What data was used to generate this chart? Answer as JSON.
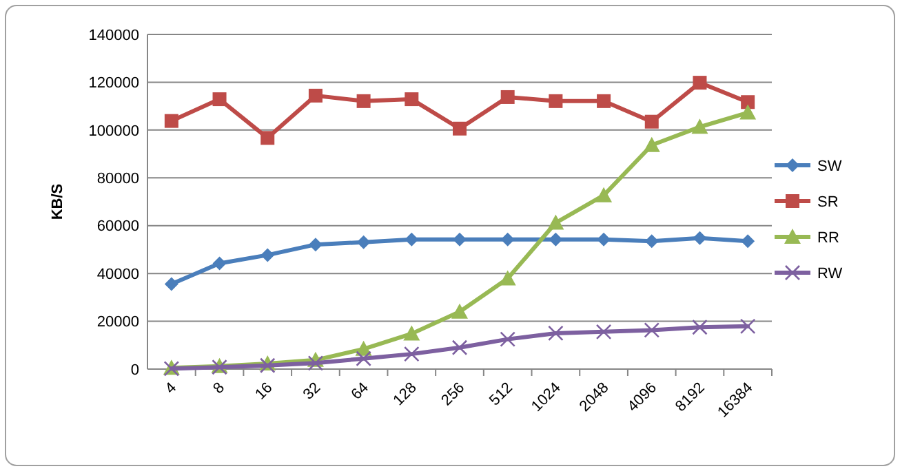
{
  "chart_data": {
    "type": "line",
    "ylabel": "KB/S",
    "categories": [
      "4",
      "8",
      "16",
      "32",
      "64",
      "128",
      "256",
      "512",
      "1024",
      "2048",
      "4096",
      "8192",
      "16384"
    ],
    "ylim": [
      0,
      140000
    ],
    "yticks": [
      0,
      20000,
      40000,
      60000,
      80000,
      100000,
      120000,
      140000
    ],
    "grid": "y",
    "legend": "right",
    "line_style": "solid",
    "series": [
      {
        "name": "SW",
        "color": "#4a7ebb",
        "marker": "diamond",
        "values": [
          35600,
          44200,
          47700,
          52100,
          53100,
          54200,
          54200,
          54200,
          54200,
          54200,
          53500,
          54800,
          53500
        ]
      },
      {
        "name": "SR",
        "color": "#be4b48",
        "marker": "square",
        "values": [
          103800,
          112900,
          96700,
          114400,
          112100,
          112900,
          100600,
          113800,
          112100,
          112100,
          103500,
          119800,
          111700
        ]
      },
      {
        "name": "RR",
        "color": "#98b954",
        "marker": "triangle",
        "values": [
          500,
          1200,
          2300,
          3800,
          8400,
          14800,
          24000,
          37900,
          61200,
          72700,
          93700,
          101300,
          107300
        ]
      },
      {
        "name": "RW",
        "color": "#7d60a0",
        "marker": "cross",
        "values": [
          200,
          800,
          1500,
          2500,
          4400,
          6300,
          9000,
          12500,
          15000,
          15600,
          16300,
          17500,
          17900
        ]
      }
    ]
  }
}
